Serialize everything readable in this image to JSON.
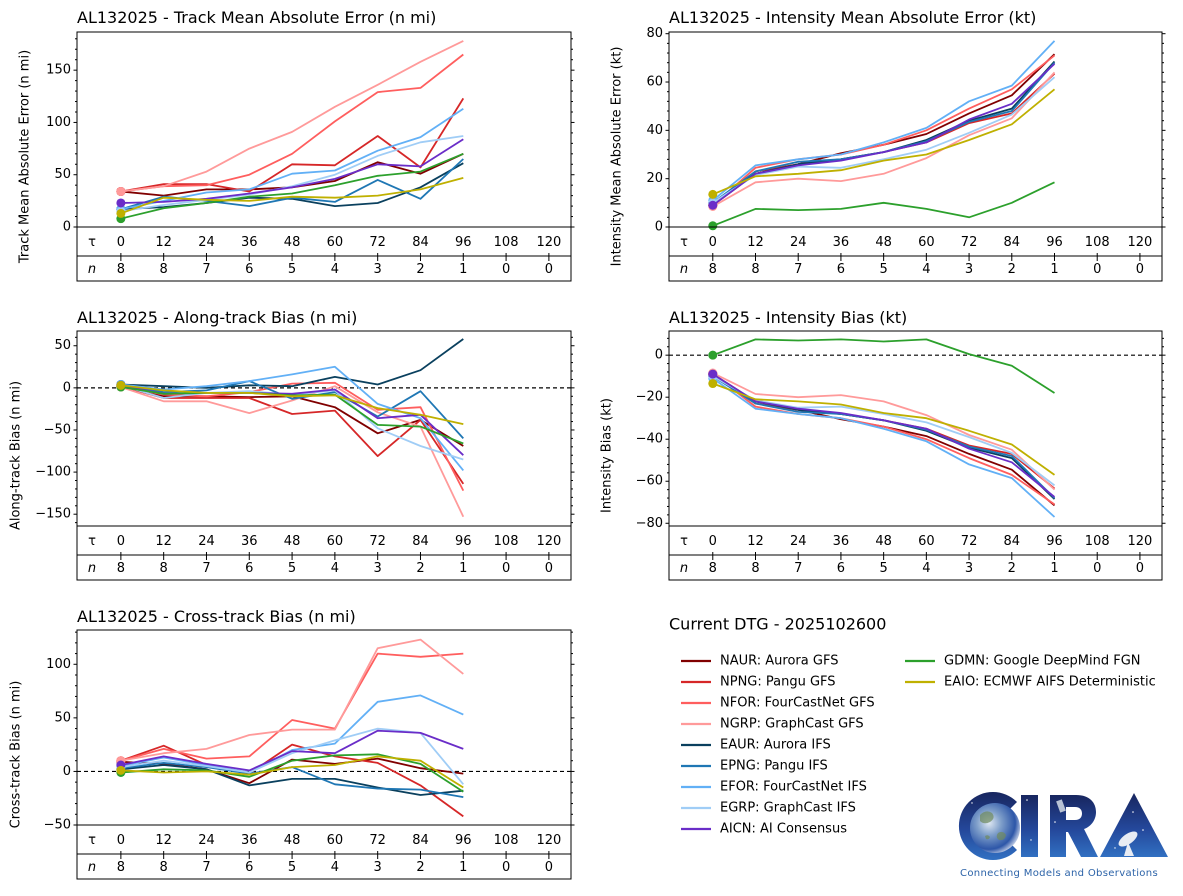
{
  "legend": {
    "title": "Current DTG - 2025102600",
    "placement": "bottom-right panel",
    "items": [
      {
        "code": "NAUR",
        "label": "NAUR: Aurora GFS",
        "color": "#800000"
      },
      {
        "code": "NPNG",
        "label": "NPNG: Pangu GFS",
        "color": "#d62728"
      },
      {
        "code": "NFOR",
        "label": "NFOR: FourCastNet GFS",
        "color": "#ff5e5e"
      },
      {
        "code": "NGRP",
        "label": "NGRP: GraphCast GFS",
        "color": "#ff9a9a"
      },
      {
        "code": "EAUR",
        "label": "EAUR: Aurora IFS",
        "color": "#0a405e"
      },
      {
        "code": "EPNG",
        "label": "EPNG: Pangu IFS",
        "color": "#1f77b4"
      },
      {
        "code": "EFOR",
        "label": "EFOR: FourCastNet IFS",
        "color": "#62b0f6"
      },
      {
        "code": "EGRP",
        "label": "EGRP: GraphCast IFS",
        "color": "#a0cdf6"
      },
      {
        "code": "AICN",
        "label": "AICN: AI Consensus",
        "color": "#6a2dc8"
      },
      {
        "code": "GDMN",
        "label": "GDMN: Google DeepMind FGN",
        "color": "#2ca02c"
      },
      {
        "code": "EAIO",
        "label": "EAIO: ECMWF AIFS Deterministic",
        "color": "#bfb000"
      }
    ]
  },
  "logo": {
    "text": "CIRA",
    "tagline": "Connecting Models and Observations"
  },
  "chart_data": [
    {
      "type": "line",
      "title": "AL132025 - Track Mean Absolute Error (n mi)",
      "xlabel": "",
      "ylabel": "Track Mean Absolute Error (n mi)",
      "xlim": [
        -12.3,
        126.2
      ],
      "ylim": [
        0,
        186.5
      ],
      "yticks": [
        0,
        50,
        100,
        150
      ],
      "ytick_labels": [
        "0",
        "50",
        "100",
        "150"
      ],
      "yminor_step": 10,
      "zero_line": false,
      "grid": false,
      "tau_label": "τ",
      "n_label": "n",
      "x_ticks": [
        0,
        12,
        24,
        36,
        48,
        60,
        72,
        84,
        96,
        108,
        120
      ],
      "n_counts": [
        8,
        8,
        7,
        6,
        5,
        4,
        3,
        2,
        1,
        0,
        0
      ],
      "x": [
        0,
        12,
        24,
        36,
        48,
        60,
        72,
        84,
        96
      ],
      "series": [
        {
          "name": "NAUR",
          "values": [
            34,
            30,
            36,
            36,
            38,
            44,
            62,
            51,
            70
          ]
        },
        {
          "name": "NPNG",
          "values": [
            34,
            41,
            41,
            34,
            60,
            59,
            87,
            57,
            123
          ]
        },
        {
          "name": "NFOR",
          "values": [
            34,
            39,
            40,
            50,
            70,
            101,
            129,
            133,
            165
          ]
        },
        {
          "name": "NGRP",
          "values": [
            34,
            39,
            53,
            75,
            91,
            115,
            136,
            158,
            178
          ]
        },
        {
          "name": "EAUR",
          "values": [
            17,
            19,
            23,
            28,
            27,
            20,
            23,
            38,
            61
          ]
        },
        {
          "name": "EPNG",
          "values": [
            17,
            29,
            25,
            20,
            28,
            24,
            45,
            27,
            65
          ]
        },
        {
          "name": "EFOR",
          "values": [
            17,
            25,
            33,
            36,
            51,
            54,
            73,
            86,
            113
          ]
        },
        {
          "name": "EGRP",
          "values": [
            15,
            21,
            26,
            31,
            39,
            50,
            68,
            81,
            87
          ]
        },
        {
          "name": "AICN",
          "values": [
            23,
            24,
            27,
            32,
            38,
            46,
            60,
            58,
            84
          ]
        },
        {
          "name": "GDMN",
          "values": [
            8,
            18,
            23,
            29,
            32,
            40,
            49,
            53,
            70
          ]
        },
        {
          "name": "EAIO",
          "values": [
            13,
            28,
            26,
            25,
            29,
            28,
            30,
            36,
            47
          ]
        }
      ]
    },
    {
      "type": "line",
      "title": "AL132025 - Intensity Mean Absolute Error (kt)",
      "xlabel": "",
      "ylabel": "Intensity Mean Absolute Error (kt)",
      "xlim": [
        -12.3,
        126.2
      ],
      "ylim": [
        0,
        80.7
      ],
      "yticks": [
        0,
        20,
        40,
        60,
        80
      ],
      "ytick_labels": [
        "0",
        "20",
        "40",
        "60",
        "80"
      ],
      "yminor_step": 4,
      "zero_line": false,
      "grid": false,
      "tau_label": "τ",
      "n_label": "n",
      "x_ticks": [
        0,
        12,
        24,
        36,
        48,
        60,
        72,
        84,
        96,
        108,
        120
      ],
      "n_counts": [
        8,
        8,
        7,
        6,
        5,
        4,
        3,
        2,
        1,
        0,
        0
      ],
      "x": [
        0,
        12,
        24,
        36,
        48,
        60,
        72,
        84,
        96
      ],
      "series": [
        {
          "name": "NAUR",
          "values": [
            9,
            22,
            26,
            30.5,
            34,
            38.5,
            47,
            54.5,
            71.5
          ]
        },
        {
          "name": "NPNG",
          "values": [
            9,
            23,
            26,
            28,
            31,
            35,
            43,
            47,
            63.5
          ]
        },
        {
          "name": "NFOR",
          "values": [
            9,
            24.5,
            28,
            30,
            34,
            40,
            49,
            57,
            71
          ]
        },
        {
          "name": "NGRP",
          "values": [
            8.5,
            18.5,
            20,
            19,
            22,
            28.5,
            38,
            45,
            64
          ]
        },
        {
          "name": "EAUR",
          "values": [
            10,
            22,
            26,
            28,
            31,
            36,
            44,
            49,
            68.5
          ]
        },
        {
          "name": "EPNG",
          "values": [
            10,
            23,
            27,
            28,
            31,
            35.5,
            43.5,
            48,
            68
          ]
        },
        {
          "name": "EFOR",
          "values": [
            11,
            25.5,
            28,
            30,
            35,
            41,
            52,
            58.5,
            77
          ]
        },
        {
          "name": "EGRP",
          "values": [
            10,
            21.5,
            25,
            24.5,
            28,
            32,
            39,
            46.5,
            62
          ]
        },
        {
          "name": "AICN",
          "values": [
            9,
            22,
            25.5,
            27.5,
            31,
            35,
            44.5,
            51,
            67.5
          ]
        },
        {
          "name": "GDMN",
          "values": [
            0.5,
            7.5,
            7,
            7.5,
            10,
            7.5,
            4,
            10,
            18.5
          ]
        },
        {
          "name": "EAIO",
          "values": [
            13.5,
            21,
            22,
            23.5,
            27.5,
            30,
            36,
            42.5,
            57
          ]
        }
      ]
    },
    {
      "type": "line",
      "title": "AL132025 - Along-track Bias (n mi)",
      "xlabel": "",
      "ylabel": "Along-track Bias (n mi)",
      "xlim": [
        -12.3,
        126.2
      ],
      "ylim": [
        -164,
        67.5
      ],
      "yticks": [
        -150,
        -100,
        -50,
        0,
        50
      ],
      "ytick_labels": [
        "−150",
        "−100",
        "−50",
        "0",
        "50"
      ],
      "yminor_step": 10,
      "zero_line": true,
      "grid": false,
      "tau_label": "τ",
      "n_label": "n",
      "x_ticks": [
        0,
        12,
        24,
        36,
        48,
        60,
        72,
        84,
        96,
        108,
        120
      ],
      "n_counts": [
        8,
        8,
        7,
        6,
        5,
        4,
        3,
        2,
        1,
        0,
        0
      ],
      "x": [
        0,
        12,
        24,
        36,
        48,
        60,
        72,
        84,
        96
      ],
      "series": [
        {
          "name": "NAUR",
          "values": [
            2,
            -10,
            -10,
            -11,
            -10,
            -23,
            -54,
            -38,
            -69
          ]
        },
        {
          "name": "NPNG",
          "values": [
            2,
            -12,
            -12,
            -12,
            -31,
            -27,
            -81,
            -38,
            -114
          ]
        },
        {
          "name": "NFOR",
          "values": [
            2,
            -8,
            -10,
            -5,
            5,
            6,
            -26,
            -23,
            -122
          ]
        },
        {
          "name": "NGRP",
          "values": [
            1,
            -16,
            -16,
            -30,
            -15,
            2,
            -29,
            -46,
            -153
          ]
        },
        {
          "name": "EAUR",
          "values": [
            4,
            2,
            0,
            3,
            2,
            13,
            4,
            21,
            58
          ]
        },
        {
          "name": "EPNG",
          "values": [
            4,
            -5,
            -3,
            8,
            -13,
            -5,
            -34,
            -4,
            -60
          ]
        },
        {
          "name": "EFOR",
          "values": [
            4,
            -2,
            2,
            8,
            16,
            25,
            -19,
            -36,
            -98
          ]
        },
        {
          "name": "EGRP",
          "values": [
            3,
            -12,
            -6,
            -4,
            -8,
            -3,
            -48,
            -69,
            -85
          ]
        },
        {
          "name": "AICN",
          "values": [
            3,
            -7,
            -6,
            -6,
            -7,
            -2,
            -36,
            -32,
            -80
          ]
        },
        {
          "name": "GDMN",
          "values": [
            1,
            -7,
            -6,
            -6,
            -9,
            -8,
            -44,
            -46,
            -66
          ]
        },
        {
          "name": "EAIO",
          "values": [
            3,
            -3,
            -6,
            -6,
            -10,
            -9,
            -24,
            -32,
            -43
          ]
        }
      ]
    },
    {
      "type": "line",
      "title": "AL132025 - Intensity Bias (kt)",
      "xlabel": "",
      "ylabel": "Intensity Bias (kt)",
      "xlim": [
        -12.3,
        126.2
      ],
      "ylim": [
        -81.3,
        11.5
      ],
      "yticks": [
        -80,
        -60,
        -40,
        -20,
        0
      ],
      "ytick_labels": [
        "−80",
        "−60",
        "−40",
        "−20",
        "0"
      ],
      "yminor_step": 4,
      "zero_line": true,
      "grid": false,
      "tau_label": "τ",
      "n_label": "n",
      "x_ticks": [
        0,
        12,
        24,
        36,
        48,
        60,
        72,
        84,
        96,
        108,
        120
      ],
      "n_counts": [
        8,
        8,
        7,
        6,
        5,
        4,
        3,
        2,
        1,
        0,
        0
      ],
      "x": [
        0,
        12,
        24,
        36,
        48,
        60,
        72,
        84,
        96
      ],
      "series": [
        {
          "name": "NAUR",
          "values": [
            -9,
            -22,
            -26,
            -30.5,
            -34,
            -38.5,
            -47,
            -54.5,
            -71.5
          ]
        },
        {
          "name": "NPNG",
          "values": [
            -9,
            -23,
            -26,
            -28,
            -31,
            -35,
            -43,
            -47,
            -63.5
          ]
        },
        {
          "name": "NFOR",
          "values": [
            -9,
            -24.5,
            -28,
            -30,
            -34,
            -40,
            -49,
            -57,
            -71
          ]
        },
        {
          "name": "NGRP",
          "values": [
            -8.5,
            -18.5,
            -20,
            -19,
            -22,
            -28.5,
            -38,
            -45,
            -64
          ]
        },
        {
          "name": "EAUR",
          "values": [
            -10,
            -22,
            -26,
            -28,
            -31,
            -36,
            -44,
            -49,
            -68.5
          ]
        },
        {
          "name": "EPNG",
          "values": [
            -10,
            -23,
            -27,
            -28,
            -31,
            -35.5,
            -43.5,
            -48,
            -68
          ]
        },
        {
          "name": "EFOR",
          "values": [
            -11,
            -25.5,
            -28,
            -30,
            -35,
            -41,
            -52,
            -58.5,
            -77
          ]
        },
        {
          "name": "EGRP",
          "values": [
            -10,
            -21.5,
            -25,
            -24.5,
            -28,
            -32,
            -39,
            -46.5,
            -62
          ]
        },
        {
          "name": "AICN",
          "values": [
            -9,
            -22,
            -25.5,
            -27.5,
            -31,
            -35,
            -44.5,
            -51,
            -67.5
          ]
        },
        {
          "name": "GDMN",
          "values": [
            0,
            7.5,
            7,
            7.5,
            6.5,
            7.5,
            0.5,
            -5,
            -18
          ]
        },
        {
          "name": "EAIO",
          "values": [
            -13.5,
            -21,
            -22,
            -23.5,
            -27.5,
            -30,
            -36,
            -42.5,
            -57
          ]
        }
      ]
    },
    {
      "type": "line",
      "title": "AL132025 - Cross-track Bias (n mi)",
      "xlabel": "",
      "ylabel": "Cross-track Bias (n mi)",
      "xlim": [
        -12.3,
        126.2
      ],
      "ylim": [
        -50,
        132
      ],
      "yticks": [
        -50,
        0,
        50,
        100
      ],
      "ytick_labels": [
        "−50",
        "0",
        "50",
        "100"
      ],
      "yminor_step": 10,
      "zero_line": true,
      "grid": false,
      "tau_label": "τ",
      "n_label": "n",
      "x_ticks": [
        0,
        12,
        24,
        36,
        48,
        60,
        72,
        84,
        96,
        108,
        120
      ],
      "n_counts": [
        8,
        8,
        7,
        6,
        5,
        4,
        3,
        2,
        1,
        0,
        0
      ],
      "x": [
        0,
        12,
        24,
        36,
        48,
        60,
        72,
        84,
        96
      ],
      "series": [
        {
          "name": "NAUR",
          "values": [
            9,
            7,
            2,
            -11,
            11,
            7,
            12,
            3,
            -2
          ]
        },
        {
          "name": "NPNG",
          "values": [
            10,
            24,
            6,
            -2,
            25,
            14,
            8,
            -13,
            -42
          ]
        },
        {
          "name": "NFOR",
          "values": [
            10,
            21,
            12,
            14,
            48,
            40,
            110,
            107,
            110
          ]
        },
        {
          "name": "NGRP",
          "values": [
            10,
            17,
            21,
            34,
            39,
            39,
            115,
            123,
            91
          ]
        },
        {
          "name": "EAUR",
          "values": [
            2,
            6,
            2,
            -13,
            -7,
            -7,
            -15,
            -22,
            -18
          ]
        },
        {
          "name": "EPNG",
          "values": [
            3,
            8,
            4,
            -2,
            4,
            -12,
            -16,
            -17,
            -24
          ]
        },
        {
          "name": "EFOR",
          "values": [
            5,
            13,
            6,
            -1,
            20,
            26,
            65,
            71,
            53
          ]
        },
        {
          "name": "EGRP",
          "values": [
            4,
            10,
            5,
            -1,
            17,
            29,
            40,
            36,
            -12
          ]
        },
        {
          "name": "AICN",
          "values": [
            6,
            14,
            7,
            1,
            19,
            17,
            38,
            36,
            21
          ]
        },
        {
          "name": "GDMN",
          "values": [
            -1,
            2,
            1,
            -5,
            10,
            15,
            16,
            7,
            -19
          ]
        },
        {
          "name": "EAIO",
          "values": [
            1,
            -1,
            0,
            -3,
            4,
            6,
            14,
            10,
            -15
          ]
        }
      ]
    }
  ]
}
